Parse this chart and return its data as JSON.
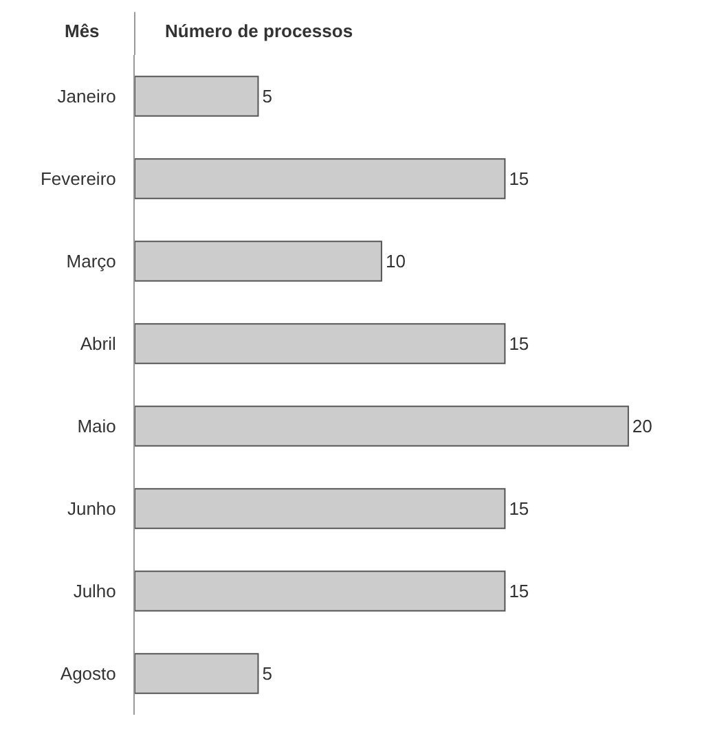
{
  "chart_data": {
    "type": "bar",
    "orientation": "horizontal",
    "xlabel": "Número de processos",
    "ylabel": "Mês",
    "categories": [
      "Janeiro",
      "Fevereiro",
      "Março",
      "Abril",
      "Maio",
      "Junho",
      "Julho",
      "Agosto"
    ],
    "values": [
      5,
      15,
      10,
      15,
      20,
      15,
      15,
      5
    ],
    "color": "#cccccc",
    "data_labels": true,
    "grid": false,
    "legend": false
  }
}
